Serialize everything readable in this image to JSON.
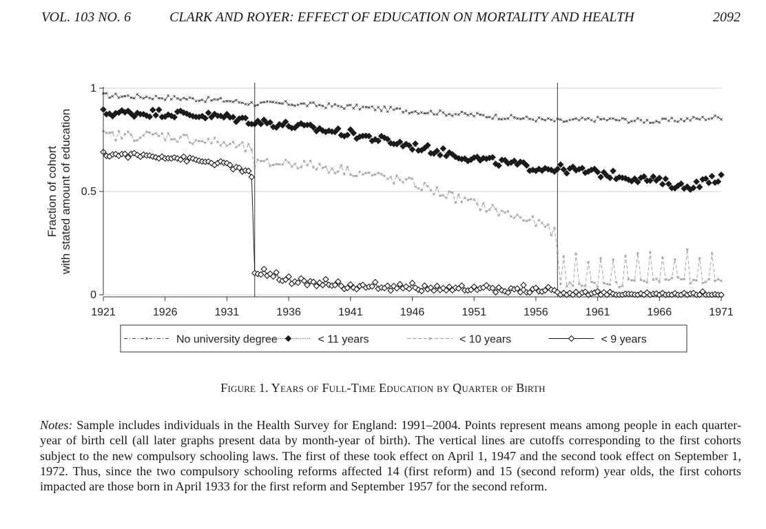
{
  "header": {
    "left": "VOL. 103 NO. 6",
    "center": "CLARK AND ROYER: EFFECT OF EDUCATION ON MORTALITY AND HEALTH",
    "right": "2092"
  },
  "caption": "Figure 1. Years of Full-Time Education by Quarter of Birth",
  "notes": {
    "label": "Notes:",
    "text": " Sample includes individuals in the Health Survey for England: 1991–2004. Points represent means among people in each quarter-year of birth cell (all later graphs present data by month-year of birth). The vertical lines are cutoffs corresponding to the first cohorts subject to the new compulsory schooling laws. The first of these took effect on April 1, 1947 and the second took effect on September 1, 1972. Thus, since the two compulsory schooling reforms affected 14 (first reform) and 15 (second reform) year olds, the first cohorts impacted are those born in April 1933 for the first reform and September 1957 for the second reform."
  },
  "chart_data": {
    "type": "line",
    "title": "",
    "xlabel": "",
    "ylabel": "Fraction of cohort\nwith stated amount of education",
    "ylabel_lines": [
      "Fraction of cohort",
      "with stated amount of education"
    ],
    "xlim": [
      1921,
      1971
    ],
    "ylim": [
      0,
      1
    ],
    "x_ticks": [
      "1921",
      "1926",
      "1931",
      "1936",
      "1941",
      "1946",
      "1951",
      "1956",
      "1961",
      "1966",
      "1971"
    ],
    "x_tick_values": [
      1921,
      1926,
      1931,
      1936,
      1941,
      1946,
      1951,
      1956,
      1961,
      1966,
      1971
    ],
    "y_ticks": [
      "0",
      "0.5",
      "1"
    ],
    "y_tick_values": [
      0,
      0.5,
      1
    ],
    "grid": "horizontal",
    "legend_position": "bottom",
    "cutoffs": [
      1933.25,
      1957.75
    ],
    "colors": {
      "no_degree": "#444444",
      "lt11": "#1a1a1a",
      "lt10": "#9a9a9a",
      "lt9": "#1a1a1a",
      "grid": "#cfcfcf",
      "axis": "#333333"
    },
    "series": [
      {
        "name": "No university degree",
        "key": "no_degree",
        "marker": "x",
        "line": "dashdot",
        "anchors": [
          [
            1921,
            0.965
          ],
          [
            1926,
            0.955
          ],
          [
            1931,
            0.94
          ],
          [
            1933.25,
            0.925
          ],
          [
            1936,
            0.925
          ],
          [
            1941,
            0.91
          ],
          [
            1946,
            0.89
          ],
          [
            1951,
            0.87
          ],
          [
            1956,
            0.85
          ],
          [
            1958,
            0.84
          ],
          [
            1961,
            0.85
          ],
          [
            1966,
            0.84
          ],
          [
            1971,
            0.86
          ]
        ],
        "noise": 0.012
      },
      {
        "name": "< 11 years",
        "key": "lt11",
        "marker": "diamond-filled",
        "line": "dotted",
        "anchors": [
          [
            1921,
            0.88
          ],
          [
            1926,
            0.88
          ],
          [
            1931,
            0.86
          ],
          [
            1933.25,
            0.84
          ],
          [
            1936,
            0.82
          ],
          [
            1941,
            0.78
          ],
          [
            1946,
            0.72
          ],
          [
            1951,
            0.66
          ],
          [
            1956,
            0.615
          ],
          [
            1958,
            0.61
          ],
          [
            1961,
            0.59
          ],
          [
            1966,
            0.55
          ],
          [
            1968,
            0.52
          ],
          [
            1971,
            0.57
          ]
        ],
        "noise": 0.02
      },
      {
        "name": "< 10 years",
        "key": "lt10",
        "marker": "x",
        "line": "dashed",
        "anchors": [
          [
            1921,
            0.77
          ],
          [
            1926,
            0.77
          ],
          [
            1931,
            0.73
          ],
          [
            1933.1,
            0.7
          ],
          [
            1933.25,
            0.63
          ],
          [
            1936,
            0.64
          ],
          [
            1941,
            0.6
          ],
          [
            1946,
            0.54
          ],
          [
            1951,
            0.44
          ],
          [
            1956,
            0.35
          ],
          [
            1957.7,
            0.3
          ],
          [
            1957.8,
            0.06
          ],
          [
            1961,
            0.08
          ],
          [
            1966,
            0.08
          ],
          [
            1971,
            0.08
          ]
        ],
        "noise": 0.025
      },
      {
        "name": "< 9 years",
        "key": "lt9",
        "marker": "diamond-hollow",
        "line": "solid",
        "anchors": [
          [
            1921,
            0.68
          ],
          [
            1926,
            0.67
          ],
          [
            1931,
            0.63
          ],
          [
            1932.75,
            0.59
          ],
          [
            1933.0,
            0.56
          ],
          [
            1933.25,
            0.11
          ],
          [
            1936,
            0.065
          ],
          [
            1941,
            0.035
          ],
          [
            1946,
            0.03
          ],
          [
            1951,
            0.025
          ],
          [
            1956,
            0.02
          ],
          [
            1957.7,
            0.02
          ],
          [
            1957.8,
            0.005
          ],
          [
            1961,
            0.005
          ],
          [
            1966,
            0.003
          ],
          [
            1971,
            0.005
          ]
        ],
        "noise": 0.012
      }
    ]
  }
}
